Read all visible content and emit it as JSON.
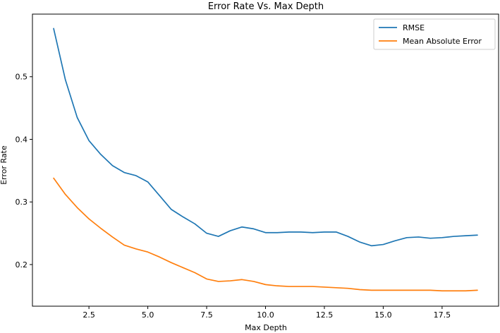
{
  "chart_data": {
    "type": "line",
    "title": "Error Rate Vs. Max Depth",
    "xlabel": "Max Depth",
    "ylabel": "Error Rate",
    "xlim": [
      0.1,
      19.9
    ],
    "ylim": [
      0.1335,
      0.6
    ],
    "xticks": [
      2.5,
      5.0,
      7.5,
      10.0,
      12.5,
      15.0,
      17.5
    ],
    "xtick_labels": [
      "2.5",
      "5.0",
      "7.5",
      "10.0",
      "12.5",
      "15.0",
      "17.5"
    ],
    "yticks": [
      0.2,
      0.3,
      0.4,
      0.5
    ],
    "ytick_labels": [
      "0.2",
      "0.3",
      "0.4",
      "0.5"
    ],
    "grid": false,
    "legend_position": "top-right",
    "series": [
      {
        "name": "RMSE",
        "color": "#1f77b4",
        "x": [
          1,
          1.5,
          2,
          2.5,
          3,
          3.5,
          4,
          4.5,
          5,
          5.5,
          6,
          6.5,
          7,
          7.5,
          8,
          8.5,
          9,
          9.5,
          10,
          10.5,
          11,
          11.5,
          12,
          12.5,
          13,
          13.5,
          14,
          14.5,
          15,
          15.5,
          16,
          16.5,
          17,
          17.5,
          18,
          18.5,
          19
        ],
        "values": [
          0.577,
          0.495,
          0.435,
          0.398,
          0.376,
          0.358,
          0.347,
          0.342,
          0.332,
          0.31,
          0.288,
          0.276,
          0.265,
          0.25,
          0.245,
          0.254,
          0.26,
          0.257,
          0.251,
          0.251,
          0.252,
          0.252,
          0.251,
          0.252,
          0.252,
          0.245,
          0.236,
          0.23,
          0.232,
          0.238,
          0.243,
          0.244,
          0.242,
          0.243,
          0.245,
          0.246,
          0.247
        ]
      },
      {
        "name": "Mean Absolute Error",
        "color": "#ff7f0e",
        "x": [
          1,
          1.5,
          2,
          2.5,
          3,
          3.5,
          4,
          4.5,
          5,
          5.5,
          6,
          6.5,
          7,
          7.5,
          8,
          8.5,
          9,
          9.5,
          10,
          10.5,
          11,
          11.5,
          12,
          12.5,
          13,
          13.5,
          14,
          14.5,
          15,
          15.5,
          16,
          16.5,
          17,
          17.5,
          18,
          18.5,
          19
        ],
        "values": [
          0.338,
          0.312,
          0.291,
          0.273,
          0.258,
          0.244,
          0.231,
          0.225,
          0.22,
          0.212,
          0.203,
          0.195,
          0.187,
          0.177,
          0.173,
          0.174,
          0.176,
          0.173,
          0.168,
          0.166,
          0.165,
          0.165,
          0.165,
          0.164,
          0.163,
          0.162,
          0.16,
          0.159,
          0.159,
          0.159,
          0.159,
          0.159,
          0.159,
          0.158,
          0.158,
          0.158,
          0.159
        ]
      }
    ]
  }
}
